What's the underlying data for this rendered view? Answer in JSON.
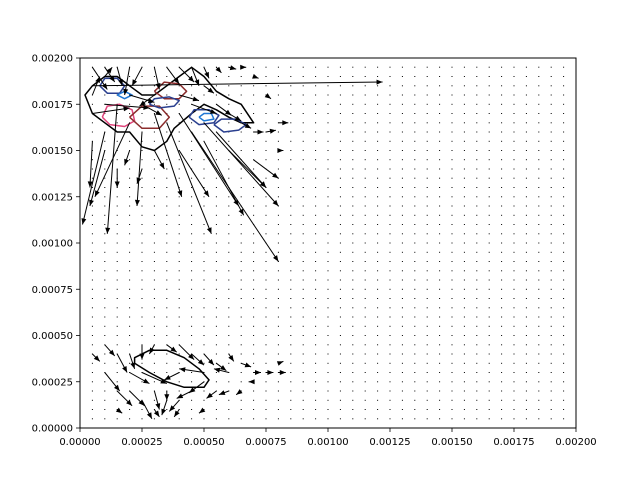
{
  "chart_data": {
    "type": "quiver",
    "title": "",
    "xlabel": "",
    "ylabel": "",
    "xlim": [
      0,
      0.002
    ],
    "ylim": [
      0,
      0.002
    ],
    "grid": false,
    "x_ticks": [
      0,
      0.00025,
      0.0005,
      0.00075,
      0.001,
      0.00125,
      0.0015,
      0.00175,
      0.002
    ],
    "x_tick_labels": [
      "0.00000",
      "0.00025",
      "0.00050",
      "0.00075",
      "0.00100",
      "0.00125",
      "0.00150",
      "0.00175",
      "0.00200"
    ],
    "y_ticks": [
      0,
      0.00025,
      0.0005,
      0.00075,
      0.001,
      0.00125,
      0.0015,
      0.00175,
      0.002
    ],
    "y_tick_labels": [
      "0.00000",
      "0.00025",
      "0.00050",
      "0.00075",
      "0.00100",
      "0.00125",
      "0.00150",
      "0.00175",
      "0.00200"
    ],
    "arrow_color": "#000000",
    "vector_field": {
      "grid_start": 0.0,
      "grid_step": 5e-05,
      "grid_count": 41,
      "arrows": [
        {
          "x": 5e-05,
          "y": 0.00195,
          "u": 6e-05,
          "v": -0.00012
        },
        {
          "x": 0.0001,
          "y": 0.00195,
          "u": 4e-05,
          "v": -8e-05
        },
        {
          "x": 0.00015,
          "y": 0.00195,
          "u": 2e-05,
          "v": -0.0001
        },
        {
          "x": 0.0002,
          "y": 0.00195,
          "u": -2e-05,
          "v": -0.00015
        },
        {
          "x": 0.00025,
          "y": 0.00195,
          "u": -4e-05,
          "v": -0.0001
        },
        {
          "x": 0.0003,
          "y": 0.00195,
          "u": 2e-05,
          "v": -0.00012
        },
        {
          "x": 0.00035,
          "y": 0.00195,
          "u": 5e-05,
          "v": -9e-05
        },
        {
          "x": 0.0004,
          "y": 0.00195,
          "u": 6e-05,
          "v": -8e-05
        },
        {
          "x": 0.00045,
          "y": 0.00195,
          "u": 3e-05,
          "v": -0.0001
        },
        {
          "x": 0.0005,
          "y": 0.00195,
          "u": 2e-05,
          "v": -6e-05
        },
        {
          "x": 0.00055,
          "y": 0.00195,
          "u": 2e-05,
          "v": -3e-05
        },
        {
          "x": 0.0006,
          "y": 0.00195,
          "u": 3e-05,
          "v": -1e-05
        },
        {
          "x": 0.00065,
          "y": 0.00195,
          "u": 2e-05,
          "v": 0.0
        },
        {
          "x": 0.0007,
          "y": 0.0019,
          "u": 2e-05,
          "v": -1e-05
        },
        {
          "x": 5e-05,
          "y": 0.0018,
          "u": 3e-05,
          "v": 0.0001
        },
        {
          "x": 0.0001,
          "y": 0.0019,
          "u": 3e-05,
          "v": 5e-05
        },
        {
          "x": 5e-05,
          "y": 0.0017,
          "u": 0.00015,
          "v": 3e-05
        },
        {
          "x": 0.0001,
          "y": 0.00175,
          "u": 0.00018,
          "v": -2e-05
        },
        {
          "x": 0.0002,
          "y": 0.0018,
          "u": 0.0001,
          "v": -4e-05
        },
        {
          "x": 0.00025,
          "y": 0.00175,
          "u": 8e-05,
          "v": -6e-05
        },
        {
          "x": 0.0003,
          "y": 0.0018,
          "u": -6e-05,
          "v": -6e-05
        },
        {
          "x": 0.0004,
          "y": 0.0018,
          "u": 8e-05,
          "v": -3e-05
        },
        {
          "x": 0.00045,
          "y": 0.00175,
          "u": 0.0001,
          "v": -5e-05
        },
        {
          "x": 0.0005,
          "y": 0.00185,
          "u": 4e-05,
          "v": -4e-05
        },
        {
          "x": 0.00055,
          "y": 0.00175,
          "u": 6e-05,
          "v": -6e-05
        },
        {
          "x": 0.0006,
          "y": 0.0017,
          "u": 5e-05,
          "v": -4e-05
        },
        {
          "x": 0.00065,
          "y": 0.00165,
          "u": 4e-05,
          "v": -3e-05
        },
        {
          "x": 0.0007,
          "y": 0.0016,
          "u": 4e-05,
          "v": 0.0
        },
        {
          "x": 0.00075,
          "y": 0.0016,
          "u": 4e-05,
          "v": 1e-05
        },
        {
          "x": 0.00075,
          "y": 0.0018,
          "u": 2e-05,
          "v": -2e-05
        },
        {
          "x": 0.0008,
          "y": 0.00165,
          "u": 4e-05,
          "v": 0.0
        },
        {
          "x": 5e-05,
          "y": 0.00185,
          "u": 0.00117,
          "v": 2e-05
        },
        {
          "x": 0.0002,
          "y": 0.00165,
          "u": -0.00014,
          "v": -0.0004
        },
        {
          "x": 0.00015,
          "y": 0.00175,
          "u": -4e-05,
          "v": -0.0007
        },
        {
          "x": 0.0001,
          "y": 0.0016,
          "u": -9e-05,
          "v": -0.0005
        },
        {
          "x": 5e-05,
          "y": 0.00155,
          "u": -1e-05,
          "v": -0.00025
        },
        {
          "x": 0.0001,
          "y": 0.0015,
          "u": -6e-05,
          "v": -0.0003
        },
        {
          "x": 0.00025,
          "y": 0.0016,
          "u": -2e-05,
          "v": -0.0004
        },
        {
          "x": 0.0003,
          "y": 0.0017,
          "u": 0.00011,
          "v": -0.00045
        },
        {
          "x": 0.00035,
          "y": 0.00165,
          "u": 0.00018,
          "v": -0.0006
        },
        {
          "x": 0.0004,
          "y": 0.0017,
          "u": 0.00024,
          "v": -0.0005
        },
        {
          "x": 0.00045,
          "y": 0.0016,
          "u": 0.00035,
          "v": -0.0007
        },
        {
          "x": 0.0005,
          "y": 0.00165,
          "u": 0.0003,
          "v": -0.00045
        },
        {
          "x": 0.00055,
          "y": 0.0016,
          "u": 0.0002,
          "v": -0.0003
        },
        {
          "x": 0.0006,
          "y": 0.0015,
          "u": 0.00015,
          "v": -0.0002
        },
        {
          "x": 0.0003,
          "y": 0.0015,
          "u": 4e-05,
          "v": -0.0001
        },
        {
          "x": 0.00015,
          "y": 0.0014,
          "u": 0.0,
          "v": -0.0001
        },
        {
          "x": 0.0002,
          "y": 0.0015,
          "u": -2e-05,
          "v": -8e-05
        },
        {
          "x": 0.0007,
          "y": 0.00145,
          "u": 0.0001,
          "v": -0.0001
        },
        {
          "x": 0.0004,
          "y": 0.0015,
          "u": 0.00012,
          "v": -0.00025
        },
        {
          "x": 0.0005,
          "y": 0.00155,
          "u": 0.00016,
          "v": -0.0004
        },
        {
          "x": 0.0008,
          "y": 0.0015,
          "u": 2e-05,
          "v": 0.0
        },
        {
          "x": 0.00025,
          "y": 0.0014,
          "u": -2e-05,
          "v": -8e-05
        },
        {
          "x": 5e-05,
          "y": 0.0004,
          "u": 3e-05,
          "v": -4e-05
        },
        {
          "x": 0.0001,
          "y": 0.00045,
          "u": 4e-05,
          "v": -6e-05
        },
        {
          "x": 0.00015,
          "y": 0.0004,
          "u": 4e-05,
          "v": -0.0001
        },
        {
          "x": 0.0001,
          "y": 0.0003,
          "u": 6e-05,
          "v": -0.0001
        },
        {
          "x": 0.0002,
          "y": 0.0004,
          "u": 2e-05,
          "v": -8e-05
        },
        {
          "x": 0.00025,
          "y": 0.00045,
          "u": 0.0,
          "v": -8e-05
        },
        {
          "x": 0.0003,
          "y": 0.00045,
          "u": -2e-05,
          "v": -5e-05
        },
        {
          "x": 0.00035,
          "y": 0.00045,
          "u": 4e-05,
          "v": -4e-05
        },
        {
          "x": 0.0004,
          "y": 0.00045,
          "u": 6e-05,
          "v": -8e-05
        },
        {
          "x": 0.00045,
          "y": 0.0004,
          "u": 5e-05,
          "v": -6e-05
        },
        {
          "x": 0.0005,
          "y": 0.0004,
          "u": 4e-05,
          "v": -6e-05
        },
        {
          "x": 0.00055,
          "y": 0.00035,
          "u": 4e-05,
          "v": -4e-05
        },
        {
          "x": 0.0006,
          "y": 0.0004,
          "u": 2e-05,
          "v": -4e-05
        },
        {
          "x": 0.00065,
          "y": 0.00035,
          "u": 4e-05,
          "v": -2e-05
        },
        {
          "x": 0.0007,
          "y": 0.0003,
          "u": 3e-05,
          "v": 0.0
        },
        {
          "x": 0.00075,
          "y": 0.0003,
          "u": 3e-05,
          "v": 0.0
        },
        {
          "x": 0.0008,
          "y": 0.0003,
          "u": 3e-05,
          "v": 0.0
        },
        {
          "x": 0.0008,
          "y": 0.00035,
          "u": 2e-05,
          "v": 1e-05
        },
        {
          "x": 0.00015,
          "y": 0.0002,
          "u": 6e-05,
          "v": -8e-05
        },
        {
          "x": 0.0002,
          "y": 0.0002,
          "u": 6e-05,
          "v": -8e-05
        },
        {
          "x": 0.00025,
          "y": 0.00015,
          "u": 4e-05,
          "v": -0.0001
        },
        {
          "x": 0.0003,
          "y": 0.0002,
          "u": 2e-05,
          "v": -0.0001
        },
        {
          "x": 0.00035,
          "y": 0.00015,
          "u": -2e-05,
          "v": -8e-05
        },
        {
          "x": 0.0004,
          "y": 0.00015,
          "u": -4e-05,
          "v": -6e-05
        },
        {
          "x": 0.00045,
          "y": 0.0002,
          "u": -6e-05,
          "v": -4e-05
        },
        {
          "x": 0.0005,
          "y": 0.00025,
          "u": -6e-05,
          "v": -6e-05
        },
        {
          "x": 0.00055,
          "y": 0.0002,
          "u": -4e-05,
          "v": -4e-05
        },
        {
          "x": 0.0006,
          "y": 0.0002,
          "u": -4e-05,
          "v": -2e-05
        },
        {
          "x": 0.00065,
          "y": 0.0002,
          "u": -2e-05,
          "v": -2e-05
        },
        {
          "x": 0.0007,
          "y": 0.00025,
          "u": -2e-05,
          "v": 0.0
        },
        {
          "x": 0.00035,
          "y": 0.0002,
          "u": 0.0,
          "v": -5e-05
        },
        {
          "x": 0.0002,
          "y": 0.0003,
          "u": 8e-05,
          "v": -6e-05
        },
        {
          "x": 0.0005,
          "y": 0.0003,
          "u": -0.0001,
          "v": 2e-05
        },
        {
          "x": 0.0006,
          "y": 0.0003,
          "u": -6e-05,
          "v": 2e-05
        },
        {
          "x": 0.0003,
          "y": 0.0001,
          "u": 2e-05,
          "v": -4e-05
        },
        {
          "x": 0.0004,
          "y": 0.0001,
          "u": -2e-05,
          "v": -4e-05
        },
        {
          "x": 0.0005,
          "y": 0.0001,
          "u": -2e-05,
          "v": -2e-05
        },
        {
          "x": 0.00015,
          "y": 0.0001,
          "u": 2e-05,
          "v": -2e-05
        },
        {
          "x": 0.00025,
          "y": 0.0003,
          "u": 0.0001,
          "v": -6e-05
        },
        {
          "x": 0.0004,
          "y": 0.0003,
          "u": -6e-05,
          "v": -4e-05
        }
      ]
    },
    "contours": [
      {
        "color": "#000000",
        "points": [
          [
            0.0001,
            0.00165
          ],
          [
            0.00015,
            0.0016
          ],
          [
            0.0002,
            0.0016
          ],
          [
            0.00025,
            0.00152
          ],
          [
            0.0003,
            0.0015
          ],
          [
            0.00035,
            0.00155
          ],
          [
            0.00038,
            0.00162
          ],
          [
            0.00045,
            0.0017
          ],
          [
            0.0005,
            0.00175
          ],
          [
            0.00055,
            0.00172
          ],
          [
            0.0006,
            0.00168
          ],
          [
            0.00065,
            0.00165
          ],
          [
            0.0007,
            0.00165
          ],
          [
            0.00065,
            0.00175
          ],
          [
            0.0006,
            0.00178
          ],
          [
            0.00055,
            0.00182
          ],
          [
            0.0005,
            0.0019
          ],
          [
            0.00045,
            0.00195
          ],
          [
            0.0004,
            0.0019
          ],
          [
            0.00035,
            0.00185
          ],
          [
            0.0003,
            0.0018
          ],
          [
            0.00025,
            0.0018
          ],
          [
            0.0002,
            0.00185
          ],
          [
            0.00015,
            0.0019
          ],
          [
            0.0001,
            0.0019
          ],
          [
            5e-05,
            0.00185
          ],
          [
            2e-05,
            0.0018
          ],
          [
            5e-05,
            0.0017
          ],
          [
            0.0001,
            0.00165
          ]
        ]
      },
      {
        "color": "#000000",
        "points": [
          [
            0.00022,
            0.00035
          ],
          [
            0.00028,
            0.0003
          ],
          [
            0.00035,
            0.00025
          ],
          [
            0.00042,
            0.00022
          ],
          [
            0.0005,
            0.00022
          ],
          [
            0.00052,
            0.00026
          ],
          [
            0.00048,
            0.00032
          ],
          [
            0.00042,
            0.00038
          ],
          [
            0.00035,
            0.00042
          ],
          [
            0.00028,
            0.00042
          ],
          [
            0.00022,
            0.00038
          ],
          [
            0.00022,
            0.00035
          ]
        ]
      },
      {
        "color": "#e0457b",
        "points": [
          [
            9e-05,
            0.00168
          ],
          [
            0.00012,
            0.00164
          ],
          [
            0.00018,
            0.00163
          ],
          [
            0.00022,
            0.00166
          ],
          [
            0.00021,
            0.00172
          ],
          [
            0.00016,
            0.00175
          ],
          [
            0.00011,
            0.00174
          ],
          [
            9e-05,
            0.00168
          ]
        ]
      },
      {
        "color": "#8b2d2d",
        "points": [
          [
            0.0002,
            0.00168
          ],
          [
            0.00025,
            0.00162
          ],
          [
            0.00032,
            0.00162
          ],
          [
            0.00036,
            0.00168
          ],
          [
            0.00032,
            0.00174
          ],
          [
            0.00025,
            0.00174
          ],
          [
            0.0002,
            0.00168
          ]
        ]
      },
      {
        "color": "#8b2d2d",
        "points": [
          [
            0.0003,
            0.00182
          ],
          [
            0.00034,
            0.00178
          ],
          [
            0.0004,
            0.00178
          ],
          [
            0.00043,
            0.00182
          ],
          [
            0.0004,
            0.00186
          ],
          [
            0.00034,
            0.00187
          ],
          [
            0.0003,
            0.00182
          ]
        ]
      },
      {
        "color": "#2a3f8f",
        "points": [
          [
            8e-05,
            0.00185
          ],
          [
            0.00011,
            0.00181
          ],
          [
            0.00016,
            0.00181
          ],
          [
            0.00018,
            0.00185
          ],
          [
            0.00015,
            0.00189
          ],
          [
            0.0001,
            0.00189
          ],
          [
            8e-05,
            0.00185
          ]
        ]
      },
      {
        "color": "#1f77d4",
        "points": [
          [
            0.00015,
            0.0018
          ],
          [
            0.00018,
            0.00178
          ],
          [
            0.00021,
            0.0018
          ],
          [
            0.00018,
            0.00182
          ],
          [
            0.00015,
            0.0018
          ]
        ]
      },
      {
        "color": "#2a3f8f",
        "points": [
          [
            0.00028,
            0.00175
          ],
          [
            0.00032,
            0.00173
          ],
          [
            0.00038,
            0.00174
          ],
          [
            0.0004,
            0.00177
          ],
          [
            0.00036,
            0.00179
          ],
          [
            0.0003,
            0.00178
          ],
          [
            0.00028,
            0.00175
          ]
        ]
      },
      {
        "color": "#2a3f8f",
        "points": [
          [
            0.00044,
            0.00168
          ],
          [
            0.00048,
            0.00164
          ],
          [
            0.00054,
            0.00165
          ],
          [
            0.00056,
            0.00169
          ],
          [
            0.00052,
            0.00172
          ],
          [
            0.00046,
            0.00172
          ],
          [
            0.00044,
            0.00168
          ]
        ]
      },
      {
        "color": "#1f77d4",
        "points": [
          [
            0.00048,
            0.00168
          ],
          [
            0.0005,
            0.00166
          ],
          [
            0.00054,
            0.00167
          ],
          [
            0.00053,
            0.0017
          ],
          [
            0.0005,
            0.0017
          ],
          [
            0.00048,
            0.00168
          ]
        ]
      },
      {
        "color": "#2a3f8f",
        "points": [
          [
            0.00054,
            0.00164
          ],
          [
            0.00058,
            0.0016
          ],
          [
            0.00064,
            0.00161
          ],
          [
            0.00067,
            0.00164
          ],
          [
            0.00063,
            0.00167
          ],
          [
            0.00057,
            0.00167
          ],
          [
            0.00054,
            0.00164
          ]
        ]
      }
    ]
  }
}
